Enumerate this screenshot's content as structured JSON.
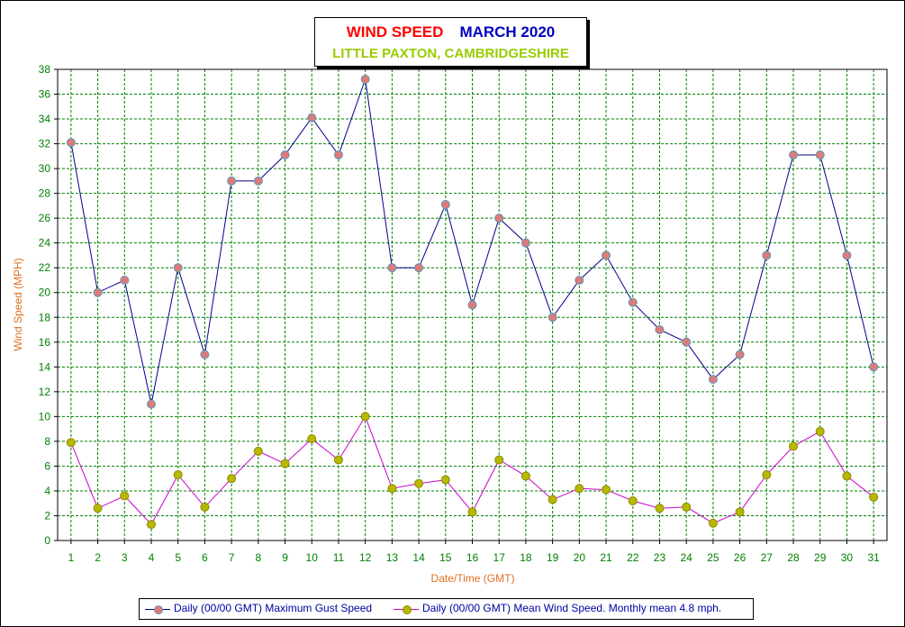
{
  "colors": {
    "gust_line": "#00008b",
    "gust_marker": "#e07a7a",
    "gust_marker_edge": "#5a9ab8",
    "mean_line": "#cc00cc",
    "mean_marker": "#b8b800",
    "mean_marker_edge": "#8a8a00",
    "grid": "#008000",
    "tick_text": "#008000",
    "axis_label": "#e07020"
  },
  "chart_data": {
    "type": "line",
    "title": "WIND SPEED",
    "title_date": "MARCH 2020",
    "subtitle": "LITTLE PAXTON, CAMBRIDGESHIRE",
    "xlabel": "Date/Time (GMT)",
    "ylabel": "Wind Speed (MPH)",
    "categories": [
      "1",
      "2",
      "3",
      "4",
      "5",
      "6",
      "7",
      "8",
      "9",
      "10",
      "11",
      "12",
      "13",
      "14",
      "15",
      "16",
      "17",
      "18",
      "19",
      "20",
      "21",
      "22",
      "23",
      "24",
      "25",
      "26",
      "27",
      "28",
      "29",
      "30",
      "31"
    ],
    "ylim": [
      0,
      38
    ],
    "y_ticks": [
      "0",
      "2",
      "4",
      "6",
      "8",
      "10",
      "12",
      "14",
      "16",
      "18",
      "20",
      "22",
      "24",
      "26",
      "28",
      "30",
      "32",
      "34",
      "36",
      "38"
    ],
    "grid": true,
    "legend_position": "bottom",
    "series": [
      {
        "name": "Daily (00/00 GMT) Maximum Gust Speed",
        "values": [
          32.1,
          20.0,
          21.0,
          11.0,
          22.0,
          15.0,
          29.0,
          29.0,
          31.1,
          34.1,
          31.1,
          37.2,
          22.0,
          22.0,
          27.1,
          19.0,
          26.0,
          24.0,
          18.0,
          21.0,
          23.0,
          19.2,
          17.0,
          16.0,
          13.0,
          15.0,
          23.0,
          31.1,
          31.1,
          23.0,
          14.0
        ]
      },
      {
        "name": "Daily (00/00 GMT) Mean Wind Speed. Monthly mean 4.8 mph.",
        "values": [
          7.9,
          2.6,
          3.6,
          1.3,
          5.3,
          2.7,
          5.0,
          7.2,
          6.2,
          8.2,
          6.5,
          10.0,
          4.2,
          4.6,
          4.9,
          2.3,
          6.5,
          5.2,
          3.3,
          4.2,
          4.1,
          3.2,
          2.6,
          2.7,
          1.4,
          2.3,
          5.3,
          7.6,
          8.8,
          5.2,
          3.5
        ]
      }
    ]
  }
}
